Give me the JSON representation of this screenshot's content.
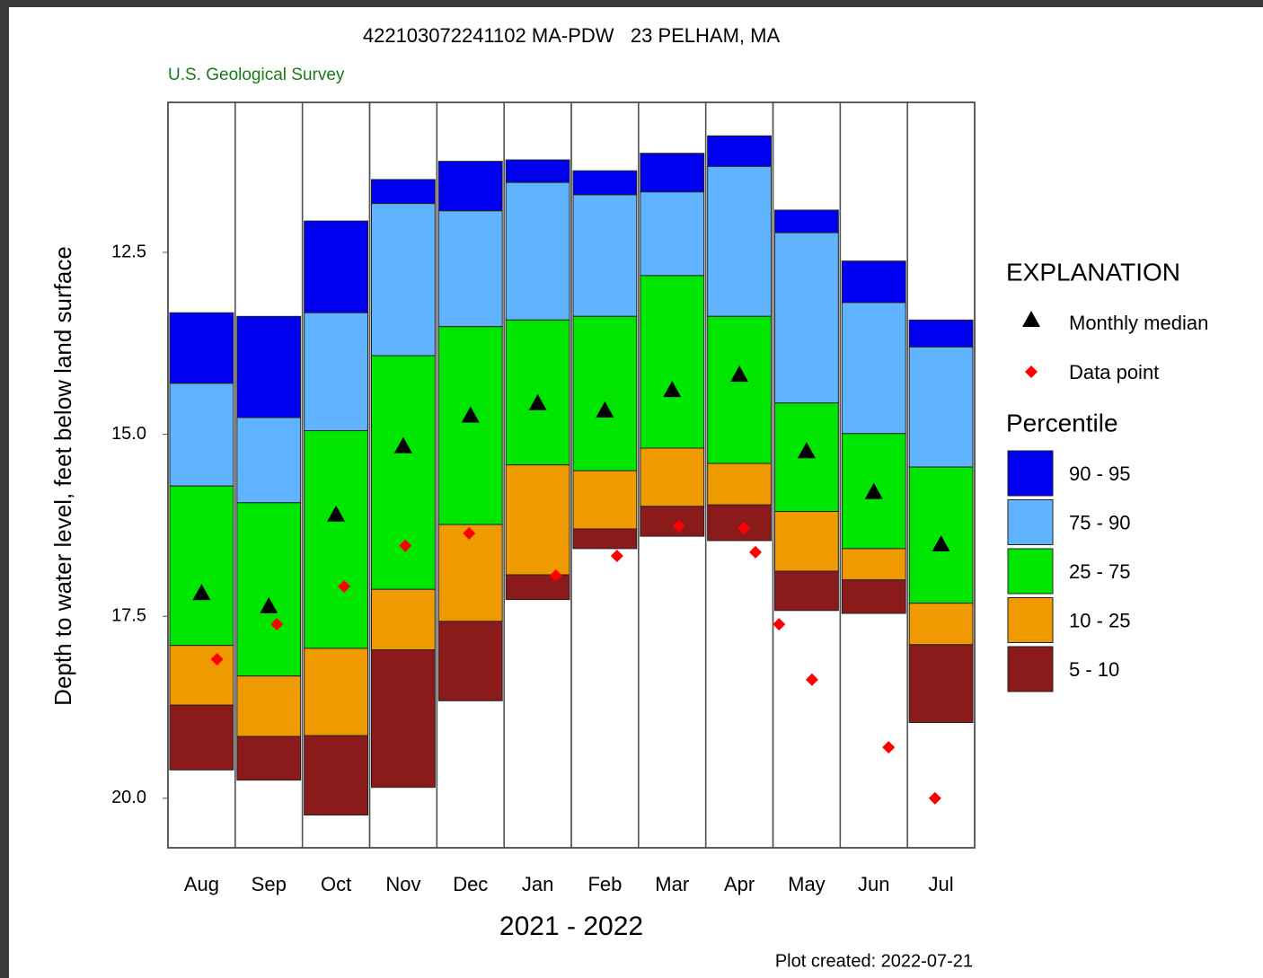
{
  "chart_data": {
    "type": "percentile",
    "title": "422103072241102 MA-PDW   23 PELHAM, MA",
    "subtitle": "U.S. Geological Survey",
    "y_label": "Depth to water level, feet below land surface",
    "x_label": "2021 - 2022",
    "note": "Plot created: 2022-07-21",
    "legend_title": "EXPLANATION",
    "percentile_title": "Percentile",
    "categories": [
      "Aug",
      "Sep",
      "Oct",
      "Nov",
      "Dec",
      "Jan",
      "Feb",
      "Mar",
      "Apr",
      "May",
      "Jun",
      "Jul"
    ],
    "ylim": [
      20.68,
      10.44
    ],
    "yticks": [
      12.5,
      {
        "value": 15,
        "label": "15.0"
      },
      17.5,
      {
        "value": 20,
        "label": "20.0"
      }
    ],
    "xlim": [
      0,
      12
    ],
    "bounds": [
      [
        13.33,
        13.38,
        12.07,
        11.5,
        11.25,
        11.23,
        11.38,
        11.14,
        10.9,
        11.92,
        12.62,
        13.43
      ],
      [
        14.3,
        14.77,
        13.33,
        11.83,
        11.93,
        11.54,
        11.71,
        11.67,
        11.32,
        12.23,
        13.19,
        13.8
      ],
      [
        15.71,
        15.94,
        14.95,
        13.92,
        13.52,
        13.43,
        13.38,
        12.82,
        13.38,
        14.57,
        14.99,
        15.45
      ],
      [
        17.9,
        18.32,
        17.94,
        17.13,
        16.24,
        15.42,
        15.5,
        15.19,
        15.4,
        16.06,
        16.57,
        17.32
      ],
      [
        18.72,
        19.15,
        19.14,
        17.96,
        17.57,
        16.93,
        16.3,
        15.99,
        15.97,
        16.88,
        17.0,
        17.89
      ],
      [
        19.61,
        19.75,
        20.23,
        19.85,
        18.66,
        17.27,
        16.57,
        16.4,
        16.46,
        17.42,
        17.46,
        18.96
      ]
    ],
    "bands": [
      {
        "name": "90 - 95",
        "color": "#0000f0"
      },
      {
        "name": "75 - 90",
        "color": "#60b4ff"
      },
      {
        "name": "25 - 75",
        "color": "#00e600"
      },
      {
        "name": "10 - 25",
        "color": "#ee9a00"
      },
      {
        "name": "5 - 10",
        "color": "#8b1a1a"
      }
    ],
    "median": {
      "name": "Monthly median",
      "color": "#000000",
      "values": [
        17.18,
        17.36,
        16.1,
        15.16,
        14.74,
        14.57,
        14.67,
        14.39,
        14.18,
        15.23,
        15.79,
        16.51
      ]
    },
    "points": {
      "name": "Data point",
      "color": "#ff0000",
      "x": [
        0.73,
        1.62,
        2.62,
        3.53,
        4.48,
        5.77,
        6.68,
        7.6,
        8.57,
        8.74,
        9.09,
        9.58,
        10.72,
        11.41
      ],
      "values": [
        18.09,
        17.61,
        17.09,
        16.53,
        16.36,
        16.94,
        16.67,
        16.26,
        16.29,
        16.62,
        17.61,
        18.37,
        19.3,
        20.0
      ]
    }
  }
}
